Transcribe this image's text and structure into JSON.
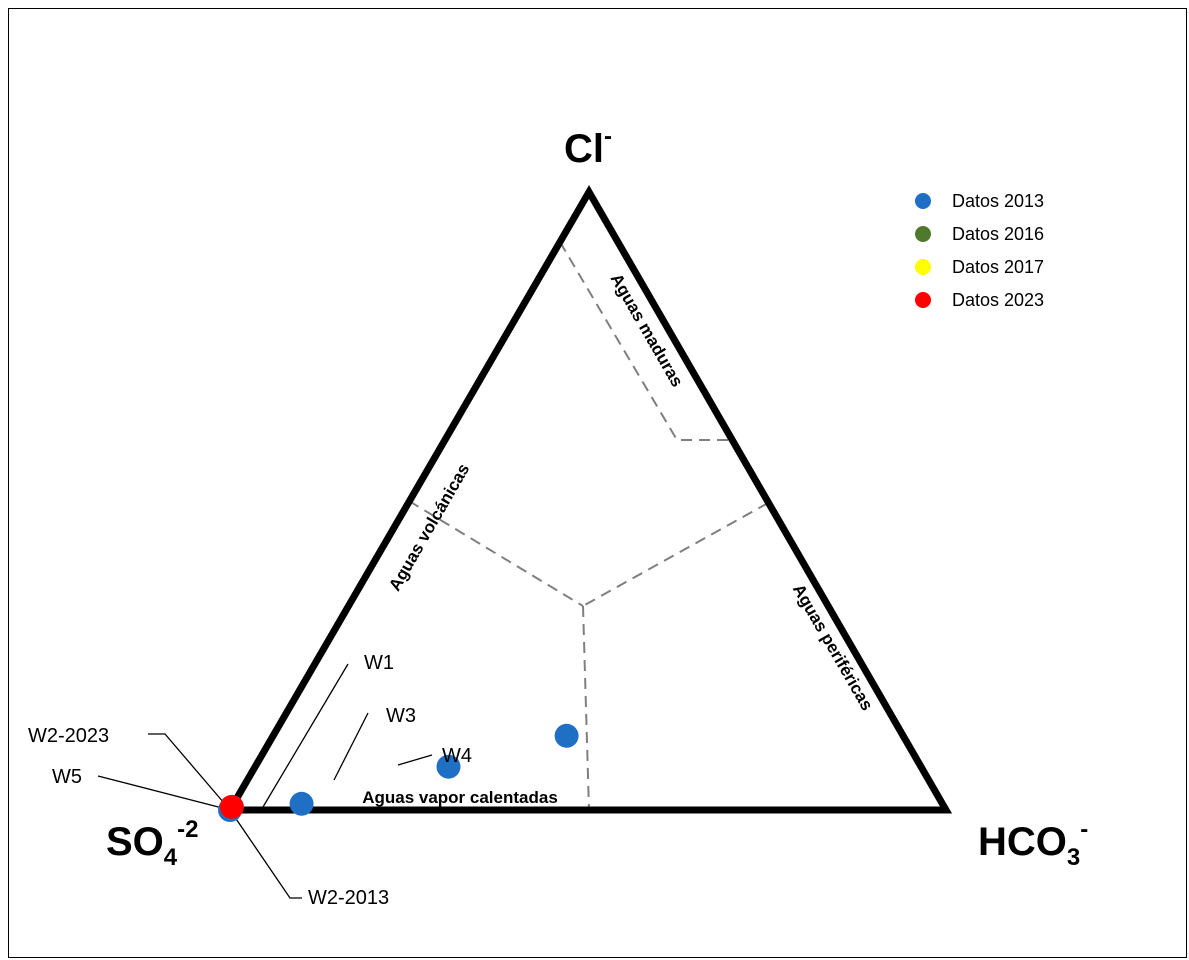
{
  "chart_data": {
    "type": "scatter",
    "subtype": "ternary",
    "vertices": {
      "top": {
        "base": "Cl",
        "sup": "-"
      },
      "left": {
        "base": "SO",
        "sub": "4",
        "sup": "-2"
      },
      "right": {
        "base": "HCO",
        "sub": "3",
        "sup": "-"
      }
    },
    "zones": [
      {
        "name": "Aguas maduras"
      },
      {
        "name": "Aguas volcánicas"
      },
      {
        "name": "Aguas periféricas"
      },
      {
        "name": "Aguas vapor calentadas"
      }
    ],
    "legend": {
      "position": "top-right",
      "entries": [
        {
          "label": "Datos 2013",
          "color": "#1f6fc5"
        },
        {
          "label": "Datos 2016",
          "color": "#4f7a2e"
        },
        {
          "label": "Datos 2017",
          "color": "#ffff00"
        },
        {
          "label": "Datos 2023",
          "color": "#ff0000"
        }
      ]
    },
    "points": [
      {
        "name": "W1",
        "series": "Datos 2013",
        "Cl": 0.01,
        "HCO3": 0.095,
        "SO4": 0.895
      },
      {
        "name": "W2-2013",
        "series": "Datos 2013",
        "Cl": 0.0,
        "HCO3": 0.0,
        "SO4": 1.0
      },
      {
        "name": "W2-2023",
        "series": "Datos 2023",
        "Cl": 0.005,
        "HCO3": 0.0,
        "SO4": 0.995
      },
      {
        "name": "W3",
        "series": "Datos 2013",
        "Cl": 0.07,
        "HCO3": 0.27,
        "SO4": 0.66
      },
      {
        "name": "W4",
        "series": "Datos 2013",
        "Cl": 0.12,
        "HCO3": 0.41,
        "SO4": 0.47
      },
      {
        "name": "W5",
        "series": "Datos 2013",
        "Cl": 0.005,
        "HCO3": 0.0,
        "SO4": 0.995
      }
    ]
  }
}
